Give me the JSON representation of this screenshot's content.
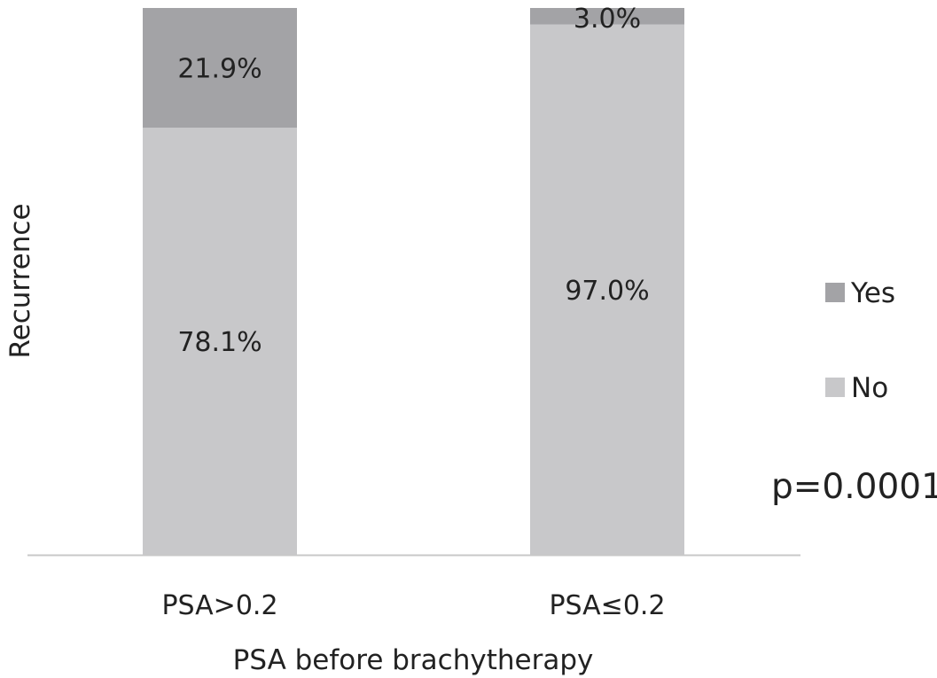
{
  "chart_data": {
    "type": "bar",
    "stacked": true,
    "normalized": true,
    "categories": [
      "PSA>0.2",
      "PSA≤0.2"
    ],
    "series": [
      {
        "name": "No",
        "values": [
          78.1,
          97.0
        ],
        "labels": [
          "78.1%",
          "97.0%"
        ],
        "color": "#c8c8ca"
      },
      {
        "name": "Yes",
        "values": [
          21.9,
          3.0
        ],
        "labels": [
          "21.9%",
          "3.0%"
        ],
        "color": "#a3a3a6"
      }
    ],
    "xlabel": "PSA before brachytherapy",
    "ylabel": "Recurrence",
    "ylim": [
      0,
      100
    ],
    "grid": false,
    "legend": {
      "position": "right",
      "items": [
        {
          "label": "Yes",
          "color": "#a3a3a6"
        },
        {
          "label": "No",
          "color": "#c8c8ca"
        }
      ]
    },
    "annotation": "p=0.0001",
    "axis_color": "#c8c8c8"
  }
}
